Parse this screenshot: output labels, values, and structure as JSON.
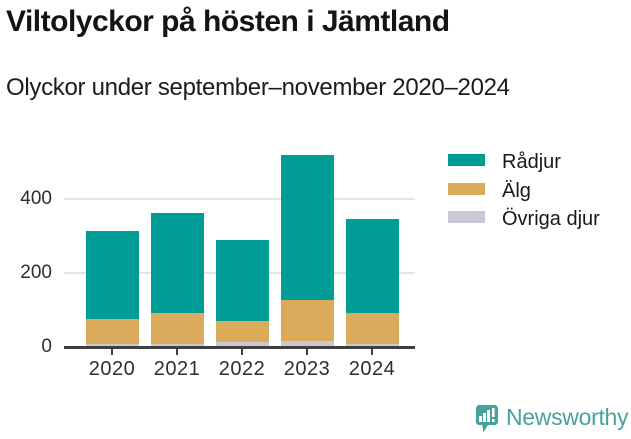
{
  "title": "Viltolyckor på hösten i Jämtland",
  "subtitle": "Olyckor under september–november 2020–2024",
  "chart_data": {
    "type": "bar",
    "stacked": true,
    "title": "Viltolyckor på hösten i Jämtland",
    "subtitle": "Olyckor under september–november 2020–2024",
    "categories": [
      "2020",
      "2021",
      "2022",
      "2023",
      "2024"
    ],
    "series": [
      {
        "name": "Rådjur",
        "color": "#009c96",
        "values": [
          236,
          269,
          219,
          390,
          254
        ]
      },
      {
        "name": "Älg",
        "color": "#d9ab5b",
        "values": [
          68,
          84,
          58,
          110,
          83
        ]
      },
      {
        "name": "Övriga djur",
        "color": "#c9c8d3",
        "values": [
          8,
          9,
          13,
          17,
          9
        ]
      }
    ],
    "stack_order_bottom_to_top": [
      "Övriga djur",
      "Älg",
      "Rådjur"
    ],
    "totals": [
      312,
      362,
      290,
      517,
      346
    ],
    "xlabel": "",
    "ylabel": "",
    "yticks": [
      0,
      200,
      400
    ],
    "ylim": [
      0,
      530
    ],
    "grid": "horizontal",
    "legend_position": "right"
  },
  "colors": {
    "background": "#ffffff",
    "gridline": "#e4e4e4",
    "axis": "#3f3f3f",
    "text": "#141414",
    "brand_teal": "#4aa19c"
  },
  "footer": {
    "brand": "Newsworthy"
  }
}
